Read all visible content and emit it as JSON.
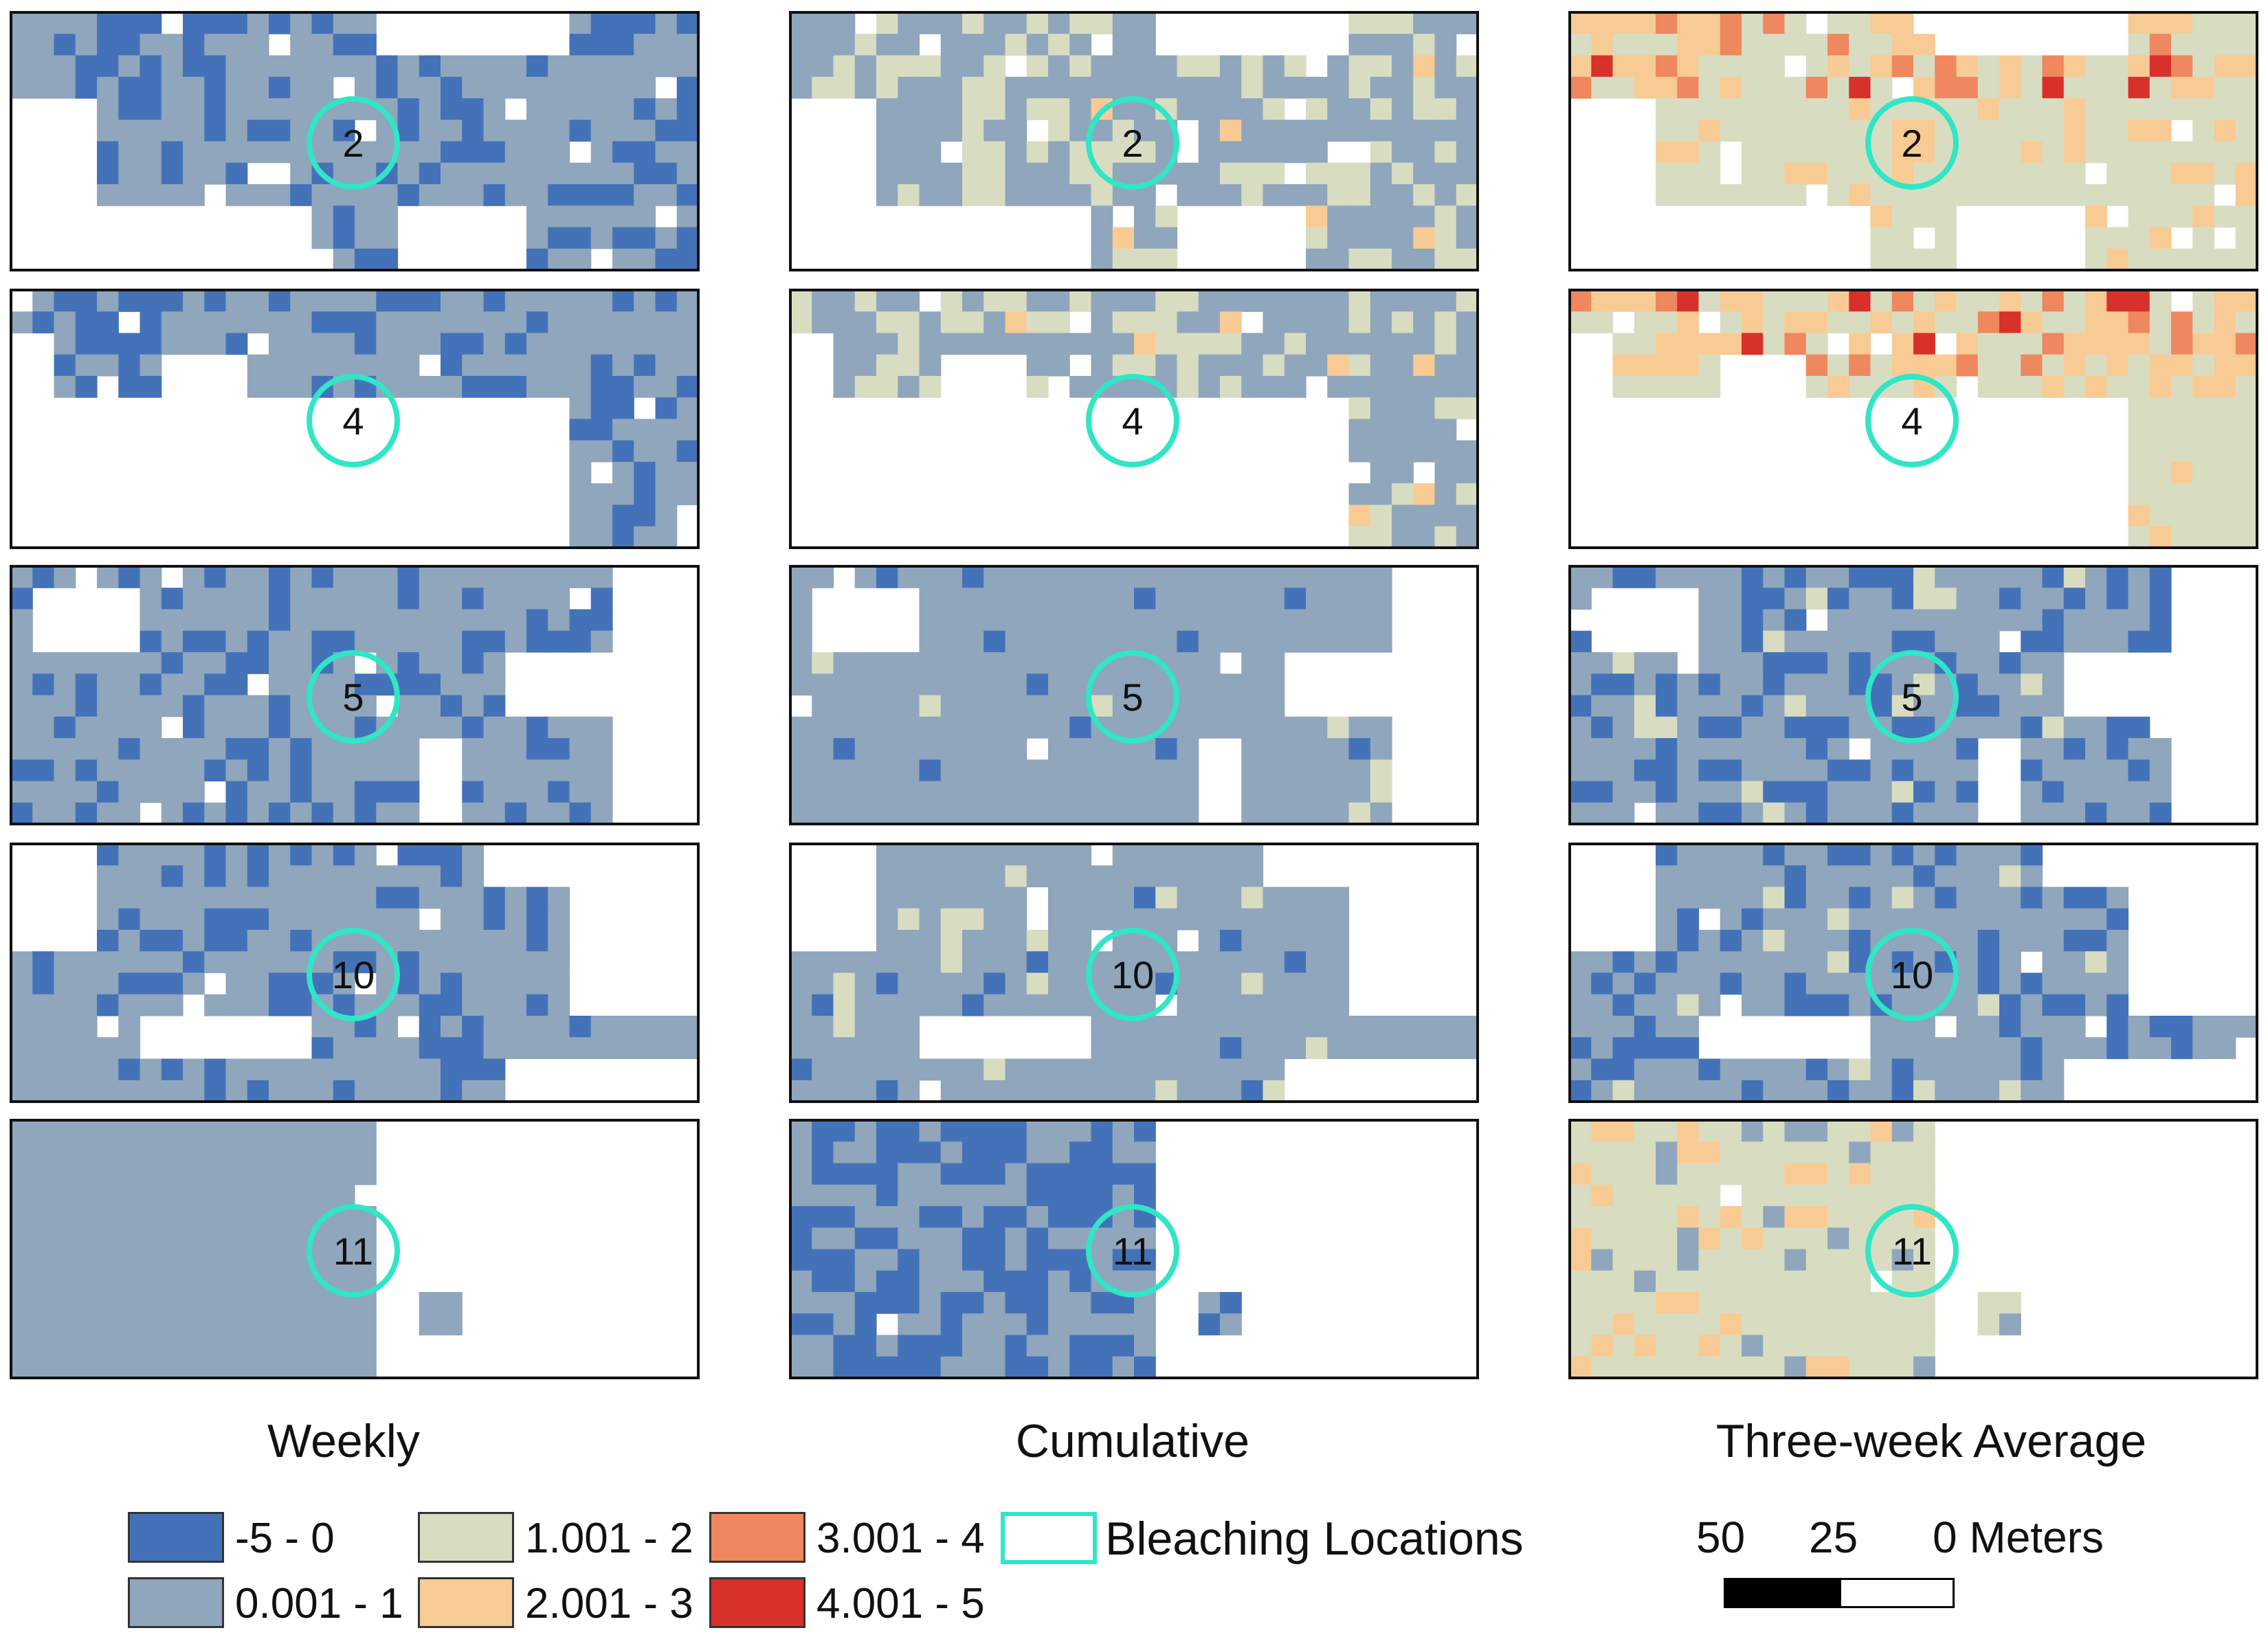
{
  "figure": {
    "columns": [
      "Weekly",
      "Cumulative",
      "Three-week Average"
    ],
    "rows": [
      {
        "location": "2"
      },
      {
        "location": "4"
      },
      {
        "location": "5"
      },
      {
        "location": "10"
      },
      {
        "location": "11"
      }
    ]
  },
  "legend": {
    "classes": [
      {
        "label": "-5 - 0",
        "color": "#4472b8"
      },
      {
        "label": "0.001 - 1",
        "color": "#8fa6bc"
      },
      {
        "label": "1.001 - 2",
        "color": "#d8ddc1"
      },
      {
        "label": "2.001 - 3",
        "color": "#f8cb94"
      },
      {
        "label": "3.001 - 4",
        "color": "#ef875f"
      },
      {
        "label": "4.001 - 5",
        "color": "#d8302b"
      }
    ],
    "bleaching_label": "Bleaching Locations",
    "bleaching_color": "#2fe6c6"
  },
  "scale_bar": {
    "labels": [
      "50",
      "25",
      "0 Meters"
    ]
  }
}
